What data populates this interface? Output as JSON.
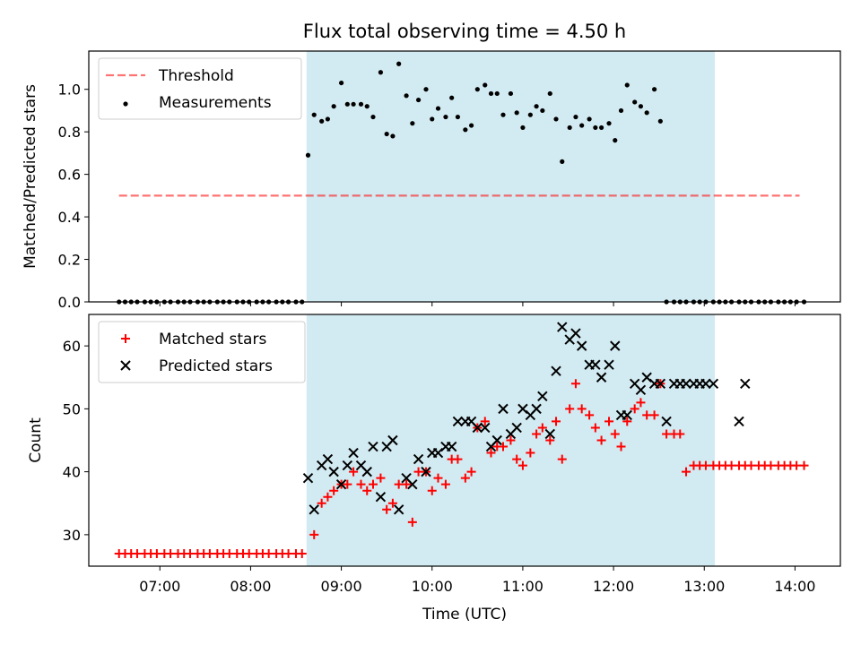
{
  "title": "Flux total observing time = 4.50 h",
  "colors": {
    "shade": "#add8e6",
    "threshold": "#ff0000",
    "matched": "#ff0000",
    "predicted": "#000000",
    "measurements": "#000000"
  },
  "chart_data": [
    {
      "type": "scatter",
      "ylabel": "Matched/Predicted stars",
      "xlabel": "",
      "xlim": [
        "06:13",
        "14:30"
      ],
      "ylim": [
        0,
        1.18
      ],
      "yticks": [
        "0.0",
        "0.2",
        "0.4",
        "0.6",
        "0.8",
        "1.0"
      ],
      "xticks": [
        "07:00",
        "08:00",
        "09:00",
        "10:00",
        "11:00",
        "12:00",
        "13:00",
        "14:00"
      ],
      "shaded_region": [
        "08:37",
        "13:07"
      ],
      "legend": {
        "placement": "upper left",
        "entries": [
          "Threshold",
          "Measurements"
        ]
      },
      "series": [
        {
          "name": "Threshold",
          "kind": "line",
          "style": "dashed",
          "x": [
            "06:33",
            "14:03"
          ],
          "y": [
            0.5,
            0.5
          ]
        },
        {
          "name": "Measurements",
          "kind": "scatter",
          "marker": "dot",
          "x": [
            "06:33",
            "06:37",
            "06:41",
            "06:45",
            "06:50",
            "06:54",
            "06:58",
            "07:03",
            "07:07",
            "07:12",
            "07:16",
            "07:20",
            "07:25",
            "07:29",
            "07:33",
            "07:38",
            "07:42",
            "07:46",
            "07:51",
            "07:55",
            "07:59",
            "08:04",
            "08:08",
            "08:12",
            "08:17",
            "08:21",
            "08:25",
            "08:30",
            "08:34",
            "08:38",
            "08:42",
            "08:47",
            "08:51",
            "08:55",
            "09:00",
            "09:04",
            "09:08",
            "09:13",
            "09:17",
            "09:21",
            "09:26",
            "09:30",
            "09:34",
            "09:38",
            "09:43",
            "09:47",
            "09:51",
            "09:56",
            "10:00",
            "10:04",
            "10:09",
            "10:13",
            "10:17",
            "10:22",
            "10:26",
            "10:30",
            "10:35",
            "10:39",
            "10:43",
            "10:47",
            "10:52",
            "10:56",
            "11:00",
            "11:05",
            "11:09",
            "11:13",
            "11:18",
            "11:22",
            "11:26",
            "11:31",
            "11:35",
            "11:39",
            "11:44",
            "11:48",
            "11:52",
            "11:57",
            "12:01",
            "12:05",
            "12:09",
            "12:14",
            "12:18",
            "12:22",
            "12:27",
            "12:31",
            "12:35",
            "12:40",
            "12:44",
            "12:48",
            "12:53",
            "12:57",
            "13:01",
            "13:06",
            "13:10",
            "13:14",
            "13:18",
            "13:23",
            "13:27",
            "13:31",
            "13:36",
            "13:40",
            "13:44",
            "13:49",
            "13:53",
            "13:57",
            "14:01",
            "14:06"
          ],
          "y": [
            0,
            0,
            0,
            0,
            0,
            0,
            0,
            0,
            0,
            0,
            0,
            0,
            0,
            0,
            0,
            0,
            0,
            0,
            0,
            0,
            0,
            0,
            0,
            0,
            0,
            0,
            0,
            0,
            0,
            0.69,
            0.88,
            0.85,
            0.86,
            0.92,
            1.03,
            0.93,
            0.93,
            0.93,
            0.92,
            0.87,
            1.08,
            0.79,
            0.78,
            1.12,
            0.97,
            0.84,
            0.95,
            1.0,
            0.86,
            0.91,
            0.87,
            0.96,
            0.87,
            0.81,
            0.83,
            1.0,
            1.02,
            0.98,
            0.98,
            0.88,
            0.98,
            0.89,
            0.82,
            0.88,
            0.92,
            0.9,
            0.98,
            0.86,
            0.66,
            0.82,
            0.87,
            0.83,
            0.86,
            0.82,
            0.82,
            0.84,
            0.76,
            0.9,
            1.02,
            0.94,
            0.92,
            0.89,
            1.0,
            0.85,
            0,
            0,
            0,
            0,
            0,
            0,
            0,
            0,
            0,
            0,
            0,
            0,
            0,
            0,
            0,
            0,
            0,
            0,
            0,
            0,
            0,
            0
          ]
        }
      ]
    },
    {
      "type": "scatter",
      "ylabel": "Count",
      "xlabel": "Time (UTC)",
      "xlim": [
        "06:13",
        "14:30"
      ],
      "ylim": [
        25,
        65
      ],
      "yticks": [
        "30",
        "40",
        "50",
        "60"
      ],
      "xticks": [
        "07:00",
        "08:00",
        "09:00",
        "10:00",
        "11:00",
        "12:00",
        "13:00",
        "14:00"
      ],
      "shaded_region": [
        "08:37",
        "13:07"
      ],
      "legend": {
        "placement": "upper left",
        "entries": [
          "Matched stars",
          "Predicted stars"
        ]
      },
      "series": [
        {
          "name": "Matched stars",
          "kind": "scatter",
          "marker": "plus",
          "x": [
            "06:33",
            "06:37",
            "06:41",
            "06:45",
            "06:50",
            "06:54",
            "06:58",
            "07:03",
            "07:07",
            "07:12",
            "07:16",
            "07:20",
            "07:25",
            "07:29",
            "07:33",
            "07:38",
            "07:42",
            "07:46",
            "07:51",
            "07:55",
            "07:59",
            "08:04",
            "08:08",
            "08:12",
            "08:17",
            "08:21",
            "08:25",
            "08:30",
            "08:34",
            "08:42",
            "08:47",
            "08:51",
            "08:55",
            "09:00",
            "09:04",
            "09:08",
            "09:13",
            "09:17",
            "09:21",
            "09:26",
            "09:30",
            "09:34",
            "09:38",
            "09:43",
            "09:47",
            "09:51",
            "09:56",
            "10:00",
            "10:04",
            "10:09",
            "10:13",
            "10:17",
            "10:22",
            "10:26",
            "10:30",
            "10:35",
            "10:39",
            "10:43",
            "10:47",
            "10:52",
            "10:56",
            "11:00",
            "11:05",
            "11:09",
            "11:13",
            "11:18",
            "11:22",
            "11:26",
            "11:31",
            "11:35",
            "11:39",
            "11:44",
            "11:48",
            "11:52",
            "11:57",
            "12:01",
            "12:05",
            "12:09",
            "12:14",
            "12:18",
            "12:22",
            "12:27",
            "12:31",
            "12:35",
            "12:40",
            "12:44",
            "12:48",
            "12:53",
            "12:57",
            "13:01",
            "13:06",
            "13:10",
            "13:14",
            "13:18",
            "13:23",
            "13:27",
            "13:31",
            "13:36",
            "13:40",
            "13:44",
            "13:49",
            "13:53",
            "13:57",
            "14:01",
            "14:06"
          ],
          "y": [
            27,
            27,
            27,
            27,
            27,
            27,
            27,
            27,
            27,
            27,
            27,
            27,
            27,
            27,
            27,
            27,
            27,
            27,
            27,
            27,
            27,
            27,
            27,
            27,
            27,
            27,
            27,
            27,
            27,
            30,
            35,
            36,
            37,
            38,
            38,
            40,
            38,
            37,
            38,
            39,
            34,
            35,
            38,
            38,
            32,
            40,
            40,
            37,
            39,
            38,
            42,
            42,
            39,
            40,
            47,
            48,
            43,
            44,
            44,
            45,
            42,
            41,
            43,
            46,
            47,
            45,
            48,
            42,
            50,
            54,
            50,
            49,
            47,
            45,
            48,
            46,
            44,
            48,
            50,
            51,
            49,
            49,
            54,
            46,
            46,
            46,
            40,
            41,
            41,
            41,
            41,
            41,
            41,
            41,
            41,
            41,
            41,
            41,
            41,
            41,
            41,
            41,
            41,
            41,
            41
          ]
        },
        {
          "name": "Predicted stars",
          "kind": "scatter",
          "marker": "x",
          "x": [
            "08:38",
            "08:42",
            "08:47",
            "08:51",
            "08:55",
            "09:00",
            "09:04",
            "09:08",
            "09:13",
            "09:17",
            "09:21",
            "09:26",
            "09:30",
            "09:34",
            "09:38",
            "09:43",
            "09:47",
            "09:51",
            "09:56",
            "10:00",
            "10:04",
            "10:09",
            "10:13",
            "10:17",
            "10:22",
            "10:26",
            "10:30",
            "10:35",
            "10:39",
            "10:43",
            "10:47",
            "10:52",
            "10:56",
            "11:00",
            "11:05",
            "11:09",
            "11:13",
            "11:18",
            "11:22",
            "11:26",
            "11:31",
            "11:35",
            "11:39",
            "11:44",
            "11:48",
            "11:52",
            "11:57",
            "12:01",
            "12:05",
            "12:09",
            "12:14",
            "12:18",
            "12:22",
            "12:27",
            "12:31",
            "12:35",
            "12:40",
            "12:44",
            "12:48",
            "12:53",
            "12:57",
            "13:01",
            "13:06",
            "13:23",
            "13:27"
          ],
          "y": [
            39,
            34,
            41,
            42,
            40,
            38,
            41,
            43,
            41,
            40,
            44,
            36,
            44,
            45,
            34,
            39,
            38,
            42,
            40,
            43,
            43,
            44,
            44,
            48,
            48,
            48,
            47,
            47,
            44,
            45,
            50,
            46,
            47,
            50,
            49,
            50,
            52,
            46,
            56,
            63,
            61,
            62,
            60,
            57,
            57,
            55,
            57,
            60,
            49,
            49,
            54,
            53,
            55,
            54,
            54,
            48,
            54,
            54,
            54,
            54,
            54,
            54,
            54,
            48,
            54
          ]
        }
      ]
    }
  ]
}
